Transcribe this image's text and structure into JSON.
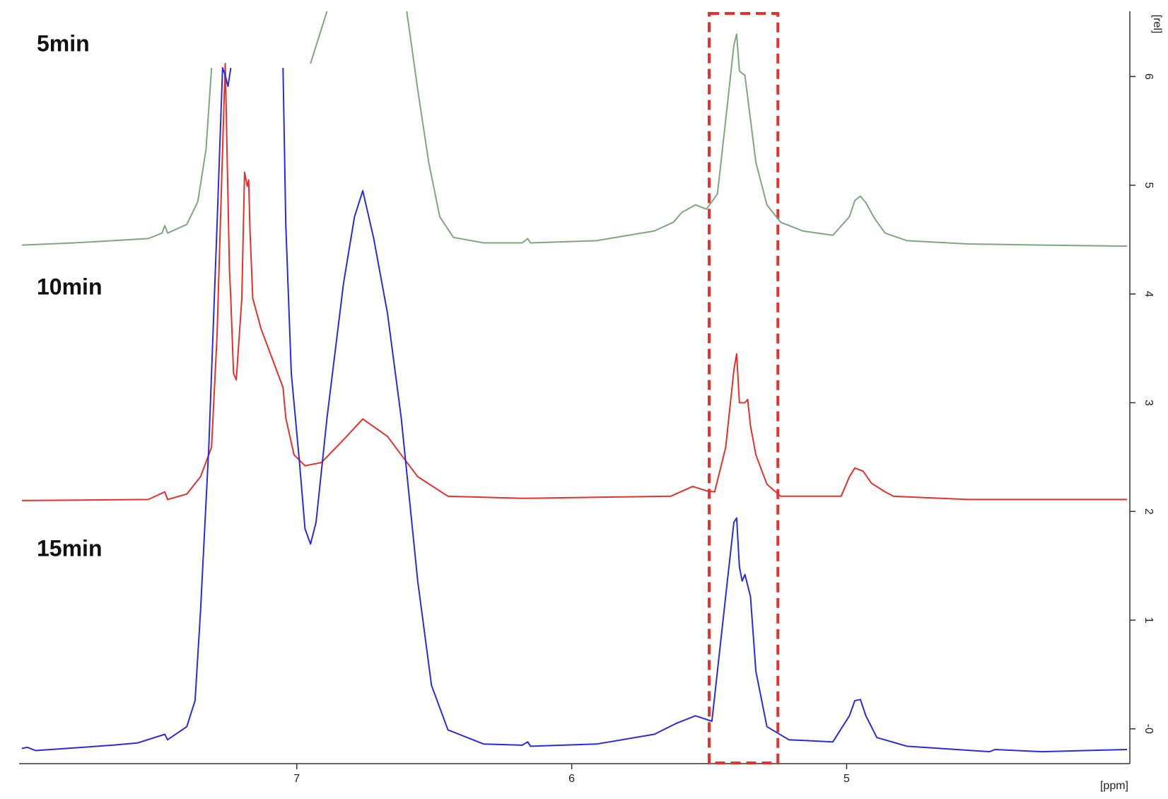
{
  "chart_data": {
    "type": "line",
    "xlabel": "[ppm]",
    "ylabel": "[rel]",
    "xlim": [
      8.01,
      3.97
    ],
    "ylim": [
      -0.32,
      6.6
    ],
    "xticks": [
      7,
      6,
      5
    ],
    "yticks": [
      {
        "value": 0,
        "label": "-0"
      },
      1,
      2,
      3,
      4,
      5,
      6
    ],
    "highlight": {
      "xrange": [
        5.5,
        5.25
      ],
      "color": "#e8302a"
    },
    "series": [
      {
        "name": "5min",
        "color": "#7fa77f",
        "x": [
          8.0,
          7.81,
          7.54,
          7.49,
          7.48,
          7.47,
          7.4,
          7.36,
          7.33,
          7.31,
          7.1,
          6.95,
          6.89,
          6.75,
          6.6,
          6.56,
          6.52,
          6.48,
          6.43,
          6.32,
          6.18,
          6.16,
          6.15,
          5.91,
          5.7,
          5.63,
          5.6,
          5.55,
          5.51,
          5.47,
          5.44,
          5.41,
          5.4,
          5.39,
          5.37,
          5.36,
          5.33,
          5.29,
          5.24,
          5.16,
          5.05,
          4.99,
          4.97,
          4.95,
          4.93,
          4.9,
          4.86,
          4.78,
          4.56,
          4.29,
          3.98
        ],
        "values": [
          4.45,
          4.47,
          4.51,
          4.56,
          4.63,
          4.56,
          4.64,
          4.85,
          5.33,
          6.08,
          null,
          6.12,
          6.6,
          null,
          6.6,
          5.88,
          5.21,
          4.71,
          4.52,
          4.47,
          4.47,
          4.51,
          4.47,
          4.49,
          4.58,
          4.66,
          4.75,
          4.82,
          4.78,
          4.92,
          5.6,
          6.29,
          6.39,
          6.05,
          6.01,
          5.81,
          5.21,
          4.82,
          4.66,
          4.58,
          4.54,
          4.71,
          4.86,
          4.9,
          4.84,
          4.7,
          4.56,
          4.49,
          4.46,
          4.45,
          4.44
        ]
      },
      {
        "name": "10min",
        "color": "#e8302a",
        "x": [
          8.0,
          7.54,
          7.48,
          7.47,
          7.4,
          7.35,
          7.31,
          7.29,
          7.27,
          7.26,
          7.245,
          7.24,
          7.23,
          7.22,
          7.2,
          7.19,
          7.18,
          7.175,
          7.17,
          7.16,
          7.13,
          7.09,
          7.05,
          7.04,
          7.01,
          6.97,
          6.91,
          6.83,
          6.76,
          6.67,
          6.62,
          6.56,
          6.45,
          6.18,
          5.91,
          5.64,
          5.56,
          5.51,
          5.48,
          5.44,
          5.41,
          5.4,
          5.39,
          5.37,
          5.36,
          5.35,
          5.33,
          5.29,
          5.24,
          5.02,
          4.99,
          4.97,
          4.94,
          4.91,
          4.86,
          4.83,
          4.56,
          3.98
        ],
        "values": [
          2.1,
          2.11,
          2.18,
          2.11,
          2.16,
          2.32,
          2.59,
          3.62,
          5.33,
          6.12,
          4.23,
          3.96,
          3.27,
          3.21,
          3.96,
          5.12,
          4.99,
          5.05,
          4.58,
          3.96,
          3.68,
          3.41,
          3.14,
          2.86,
          2.52,
          2.42,
          2.45,
          2.66,
          2.85,
          2.69,
          2.52,
          2.32,
          2.14,
          2.12,
          2.13,
          2.14,
          2.23,
          2.19,
          2.18,
          2.59,
          3.3,
          3.45,
          3.0,
          3.0,
          3.03,
          2.79,
          2.52,
          2.25,
          2.14,
          2.14,
          2.32,
          2.4,
          2.37,
          2.26,
          2.18,
          2.14,
          2.11,
          2.11
        ]
      },
      {
        "name": "15min",
        "color": "#2a2ae0",
        "x": [
          8.0,
          7.98,
          7.95,
          7.67,
          7.58,
          7.48,
          7.47,
          7.4,
          7.37,
          7.35,
          7.32,
          7.29,
          7.27,
          7.26,
          7.25,
          7.24,
          7.15,
          7.05,
          7.04,
          7.02,
          6.99,
          6.97,
          6.95,
          6.93,
          6.89,
          6.83,
          6.79,
          6.76,
          6.72,
          6.67,
          6.62,
          6.56,
          6.51,
          6.45,
          6.32,
          6.18,
          6.16,
          6.15,
          5.91,
          5.7,
          5.62,
          5.55,
          5.49,
          5.47,
          5.44,
          5.41,
          5.4,
          5.39,
          5.38,
          5.37,
          5.35,
          5.33,
          5.29,
          5.21,
          5.05,
          4.99,
          4.97,
          4.95,
          4.93,
          4.89,
          4.78,
          4.48,
          4.46,
          4.29,
          3.98
        ],
        "values": [
          -0.18,
          -0.17,
          -0.2,
          -0.15,
          -0.13,
          -0.05,
          -0.1,
          0.02,
          0.26,
          1.08,
          2.59,
          4.64,
          6.08,
          6.01,
          5.91,
          6.08,
          null,
          6.08,
          4.64,
          3.27,
          2.45,
          1.84,
          1.7,
          1.9,
          2.86,
          4.1,
          4.71,
          4.95,
          4.51,
          3.82,
          2.86,
          1.36,
          0.4,
          -0.01,
          -0.14,
          -0.15,
          -0.12,
          -0.16,
          -0.14,
          -0.05,
          0.05,
          0.12,
          0.07,
          0.53,
          1.22,
          1.9,
          1.94,
          1.49,
          1.36,
          1.42,
          1.22,
          0.53,
          0.02,
          -0.1,
          -0.12,
          0.12,
          0.26,
          0.27,
          0.12,
          -0.08,
          -0.16,
          -0.21,
          -0.19,
          -0.21,
          -0.19
        ]
      }
    ]
  }
}
